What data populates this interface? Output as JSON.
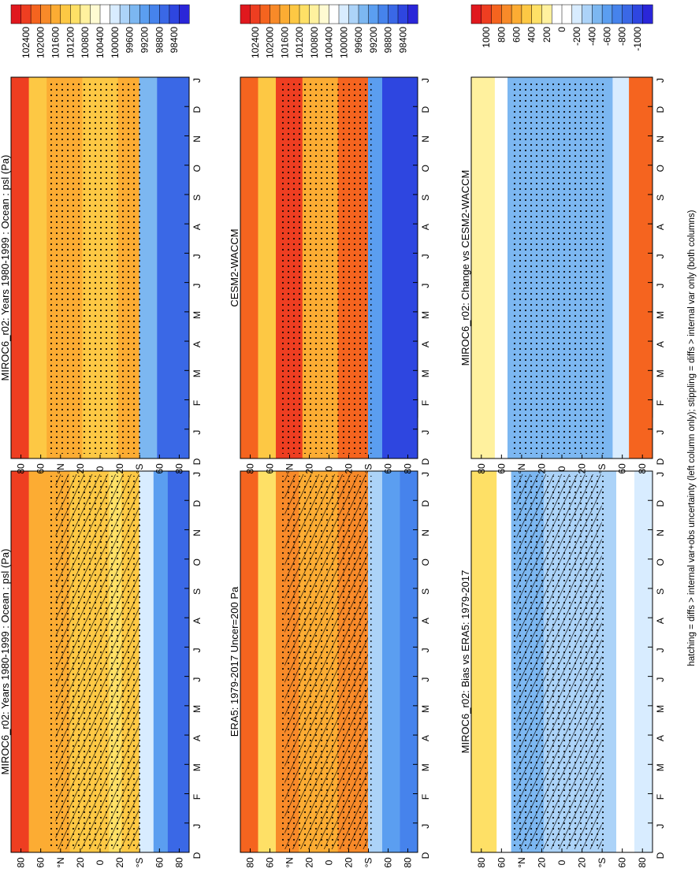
{
  "figure": {
    "footnote": "hatching = diffs > internal var+obs uncertainty (left column only); stippling = diffs > internal var only (both columns)"
  },
  "months": [
    "D",
    "J",
    "F",
    "M",
    "A",
    "M",
    "J",
    "J",
    "A",
    "S",
    "O",
    "N",
    "D",
    "J"
  ],
  "latitude_ticks": [
    "80",
    "60",
    "°N",
    "20",
    "0",
    "20",
    "°S",
    "60",
    "80"
  ],
  "colors": {
    "abs_scale": [
      "#e0181e",
      "#ee3e21",
      "#f5641f",
      "#f88a29",
      "#fcac33",
      "#fdc844",
      "#fee066",
      "#fff19e",
      "#fffbd2",
      "#ffffff",
      "#d8ecff",
      "#acd3f8",
      "#7cb7f1",
      "#5b9ef0",
      "#4683ec",
      "#3a68e6",
      "#2e46e0",
      "#2a26d8"
    ],
    "diff_scale": [
      "#e0181e",
      "#ee3e21",
      "#f5641f",
      "#f88a29",
      "#fcac33",
      "#fdc844",
      "#fee066",
      "#fff19e",
      "#ffffff",
      "#ffffff",
      "#d8ecff",
      "#acd3f8",
      "#7cb7f1",
      "#5b9ef0",
      "#4683ec",
      "#3a68e6",
      "#2e46e0",
      "#2a26d8"
    ]
  },
  "chart_data": [
    {
      "id": "miroc-absolute",
      "type": "heatmap",
      "title": "MIROC6_r02: Years 1980-1999 : Ocean : psl (Pa)",
      "x": [
        "D",
        "J",
        "F",
        "M",
        "A",
        "M",
        "J",
        "J",
        "A",
        "S",
        "O",
        "N",
        "D",
        "J"
      ],
      "y": [
        "80",
        "60",
        "°N",
        "20",
        "0",
        "20",
        "°S",
        "60",
        "80"
      ],
      "colorbar_ticks": [
        "102400",
        "102000",
        "101600",
        "101200",
        "100800",
        "100400",
        "100000",
        "99600",
        "99200",
        "98800",
        "98400"
      ],
      "overlays": [
        "hatching",
        "stippling"
      ]
    },
    {
      "id": "miroc-absolute-right",
      "type": "heatmap",
      "title": "MIROC6_r02: Years 1980-1999 : Ocean : psl (Pa)",
      "x": [
        "D",
        "J",
        "F",
        "M",
        "A",
        "M",
        "J",
        "J",
        "A",
        "S",
        "O",
        "N",
        "D",
        "J"
      ],
      "y": [
        "80",
        "60",
        "°N",
        "20",
        "0",
        "20",
        "°S",
        "60",
        "80"
      ],
      "colorbar_ticks": [
        "102400",
        "102000",
        "101600",
        "101200",
        "100800",
        "100400",
        "100000",
        "99600",
        "99200",
        "98800",
        "98400"
      ],
      "overlays": [
        "stippling"
      ]
    },
    {
      "id": "era5",
      "type": "heatmap",
      "title": "ERA5: 1979-2017 Uncer=200 Pa",
      "x": [
        "D",
        "J",
        "F",
        "M",
        "A",
        "M",
        "J",
        "J",
        "A",
        "S",
        "O",
        "N",
        "D",
        "J"
      ],
      "y": [
        "80",
        "60",
        "°N",
        "20",
        "0",
        "20",
        "°S",
        "60",
        "80"
      ],
      "colorbar_ticks": [
        "102400",
        "102000",
        "101600",
        "101200",
        "100800",
        "100400",
        "100000",
        "99600",
        "99200",
        "98800",
        "98400"
      ],
      "overlays": [
        "hatching",
        "stippling"
      ]
    },
    {
      "id": "cesm2",
      "type": "heatmap",
      "title": "CESM2-WACCM",
      "x": [
        "D",
        "J",
        "F",
        "M",
        "A",
        "M",
        "J",
        "J",
        "A",
        "S",
        "O",
        "N",
        "D",
        "J"
      ],
      "y": [
        "80",
        "60",
        "°N",
        "20",
        "0",
        "20",
        "°S",
        "60",
        "80"
      ],
      "colorbar_ticks": [
        "102400",
        "102000",
        "101600",
        "101200",
        "100800",
        "100400",
        "100000",
        "99600",
        "99200",
        "98800",
        "98400"
      ],
      "overlays": [
        "stippling"
      ]
    },
    {
      "id": "bias",
      "type": "heatmap",
      "title": "MIROC6_r02: Bias vs ERA5: 1979-2017",
      "x": [
        "D",
        "J",
        "F",
        "M",
        "A",
        "M",
        "J",
        "J",
        "A",
        "S",
        "O",
        "N",
        "D",
        "J"
      ],
      "y": [
        "80",
        "60",
        "°N",
        "20",
        "0",
        "20",
        "°S",
        "60",
        "80"
      ],
      "colorbar_ticks": [
        "1000",
        "800",
        "600",
        "400",
        "200",
        "0",
        "-200",
        "-400",
        "-600",
        "-800",
        "-1000"
      ],
      "overlays": [
        "hatching",
        "stippling"
      ]
    },
    {
      "id": "change",
      "type": "heatmap",
      "title": "MIROC6_r02: Change vs CESM2-WACCM",
      "x": [
        "D",
        "J",
        "F",
        "M",
        "A",
        "M",
        "J",
        "J",
        "A",
        "S",
        "O",
        "N",
        "D",
        "J"
      ],
      "y": [
        "80",
        "60",
        "°N",
        "20",
        "0",
        "20",
        "°S",
        "60",
        "80"
      ],
      "colorbar_ticks": [
        "1000",
        "800",
        "600",
        "400",
        "200",
        "0",
        "-200",
        "-400",
        "-600",
        "-800",
        "-1000"
      ],
      "overlays": [
        "stippling"
      ]
    }
  ]
}
